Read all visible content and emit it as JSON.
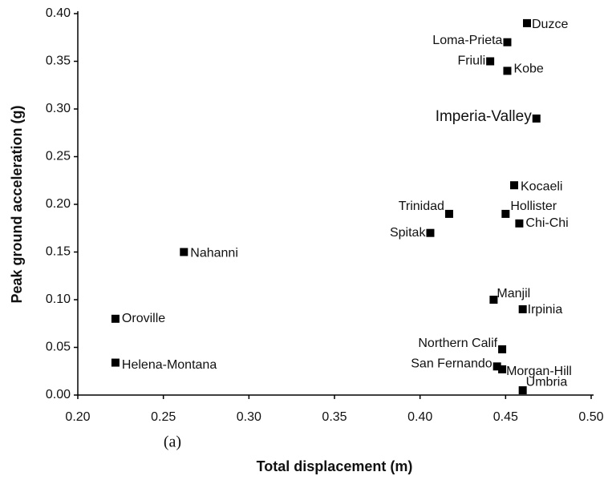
{
  "chart_data": {
    "type": "scatter",
    "xlabel": "Total displacement (m)",
    "ylabel": "Peak ground acceleration (g)",
    "annotation": "(a)",
    "color": "#000000",
    "labels": [
      "Duzce",
      "Loma-Prieta",
      "Friuli",
      "Kobe",
      "Imperia-Valley",
      "Kocaeli",
      "Trinidad",
      "Hollister",
      "Spitak",
      "Chi-Chi",
      "Nahanni",
      "Manjil",
      "Irpinia",
      "Oroville",
      "Northern Calif",
      "Helena-Montana",
      "San Fernando",
      "Morgan-Hill",
      "Umbria"
    ],
    "x": [
      0.4625,
      0.451,
      0.441,
      0.451,
      0.468,
      0.455,
      0.417,
      0.45,
      0.406,
      0.458,
      0.262,
      0.443,
      0.46,
      0.222,
      0.448,
      0.222,
      0.445,
      0.448,
      0.46
    ],
    "values": [
      0.39,
      0.37,
      0.35,
      0.34,
      0.29,
      0.22,
      0.19,
      0.19,
      0.17,
      0.18,
      0.15,
      0.1,
      0.09,
      0.08,
      0.048,
      0.034,
      0.03,
      0.027,
      0.005
    ],
    "xlim": [
      0.2,
      0.5
    ],
    "xticks": [
      {
        "value": 0.2,
        "label": "0.20"
      },
      {
        "value": 0.25,
        "label": "0.25"
      },
      {
        "value": 0.3,
        "label": "0.30"
      },
      {
        "value": 0.35,
        "label": "0.35"
      },
      {
        "value": 0.4,
        "label": "0.40"
      },
      {
        "value": 0.45,
        "label": "0.45"
      },
      {
        "value": 0.5,
        "label": "0.50"
      }
    ],
    "ylim": [
      0,
      0.4
    ],
    "yticks": [
      {
        "value": 0,
        "label": "0.00"
      },
      {
        "value": 0.05,
        "label": "0.05"
      },
      {
        "value": 0.1,
        "label": "0.10"
      },
      {
        "value": 0.15,
        "label": "0.15"
      },
      {
        "value": 0.2,
        "label": "0.20"
      },
      {
        "value": 0.25,
        "label": "0.25"
      },
      {
        "value": 0.3,
        "label": "0.30"
      },
      {
        "value": 0.35,
        "label": "0.35"
      },
      {
        "value": 0.4,
        "label": "0.40"
      }
    ]
  }
}
